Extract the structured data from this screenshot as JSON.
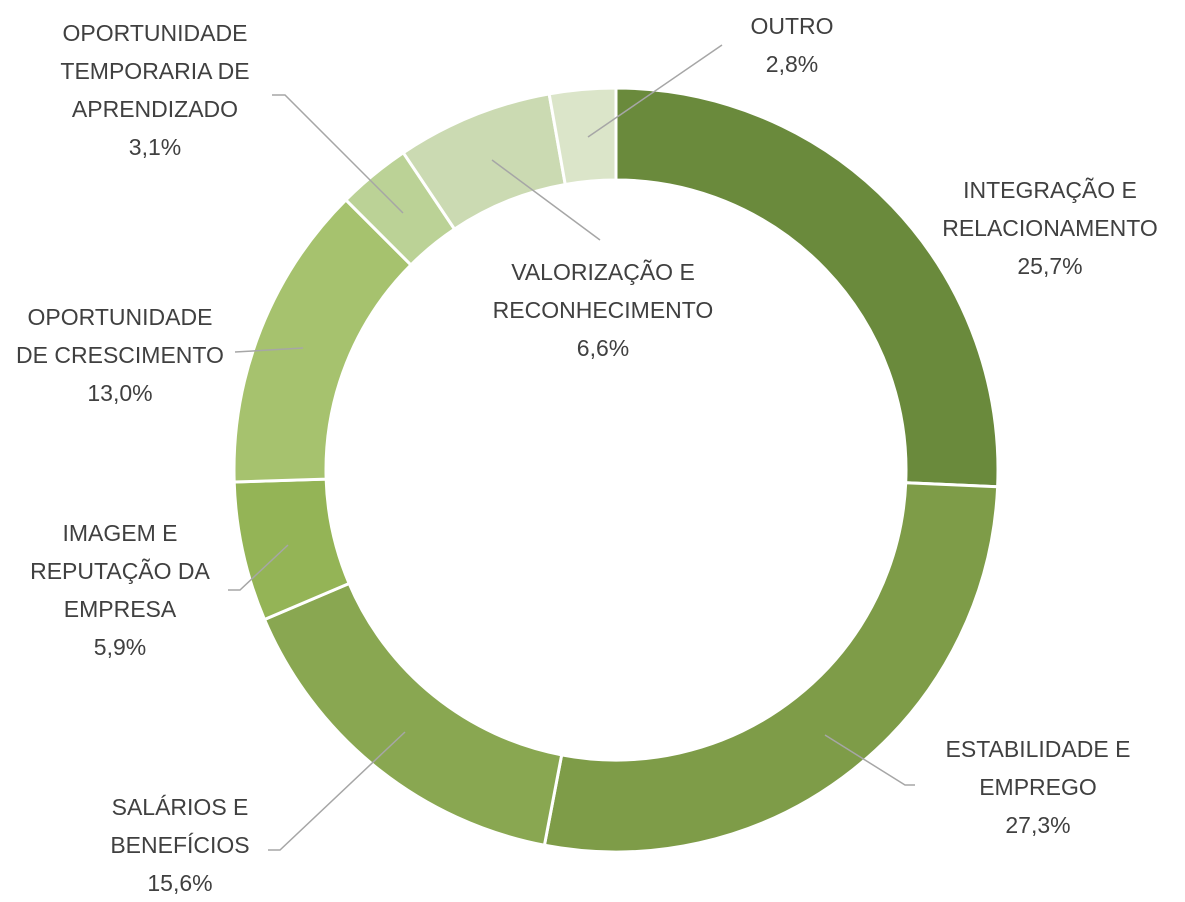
{
  "chart_data": {
    "type": "donut",
    "categories": [
      "INTEGRAÇÃO E RELACIONAMENTO",
      "ESTABILIDADE E EMPREGO",
      "SALÁRIOS E BENEFÍCIOS",
      "IMAGEM E REPUTAÇÃO DA EMPRESA",
      "OPORTUNIDADE DE CRESCIMENTO",
      "OPORTUNIDADE TEMPORARIA DE APRENDIZADO",
      "VALORIZAÇÃO E RECONHECIMENTO",
      "OUTRO"
    ],
    "values": [
      25.7,
      27.3,
      15.6,
      5.9,
      13.0,
      3.1,
      6.6,
      2.8
    ],
    "value_labels": [
      "25,7%",
      "27,3%",
      "15,6%",
      "5,9%",
      "13,0%",
      "3,1%",
      "6,6%",
      "2,8%"
    ],
    "colors": [
      "#6a8a3c",
      "#7e9c48",
      "#89a751",
      "#94b456",
      "#a6c26e",
      "#bbd296",
      "#cbdab2",
      "#dbe5c9"
    ]
  }
}
